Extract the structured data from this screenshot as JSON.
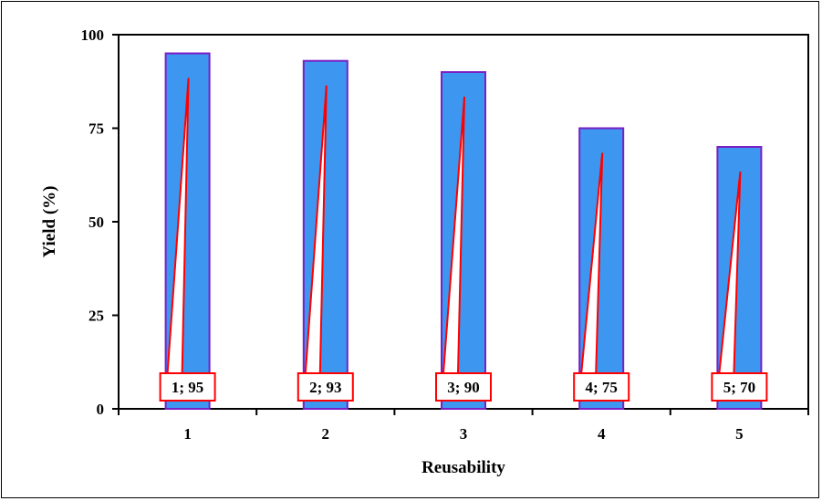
{
  "chart_data": {
    "type": "bar",
    "categories": [
      "1",
      "2",
      "3",
      "4",
      "5"
    ],
    "values": [
      95,
      93,
      90,
      75,
      70
    ],
    "data_labels": [
      "1; 95",
      "2; 93",
      "3; 90",
      "4; 75",
      "5; 70"
    ],
    "title": "",
    "xlabel": "Reusability",
    "ylabel": "Yield  (%)",
    "ylim": [
      0,
      100
    ],
    "yticks": [
      0,
      25,
      50,
      75,
      100
    ],
    "grid": false,
    "legend": "none",
    "colors": {
      "bar_fill": "#3d96f0",
      "bar_outline": "#7a1fc4",
      "callout_border": "#ff0000",
      "callout_pointer": "#ff0000",
      "axis": "#000000"
    }
  }
}
